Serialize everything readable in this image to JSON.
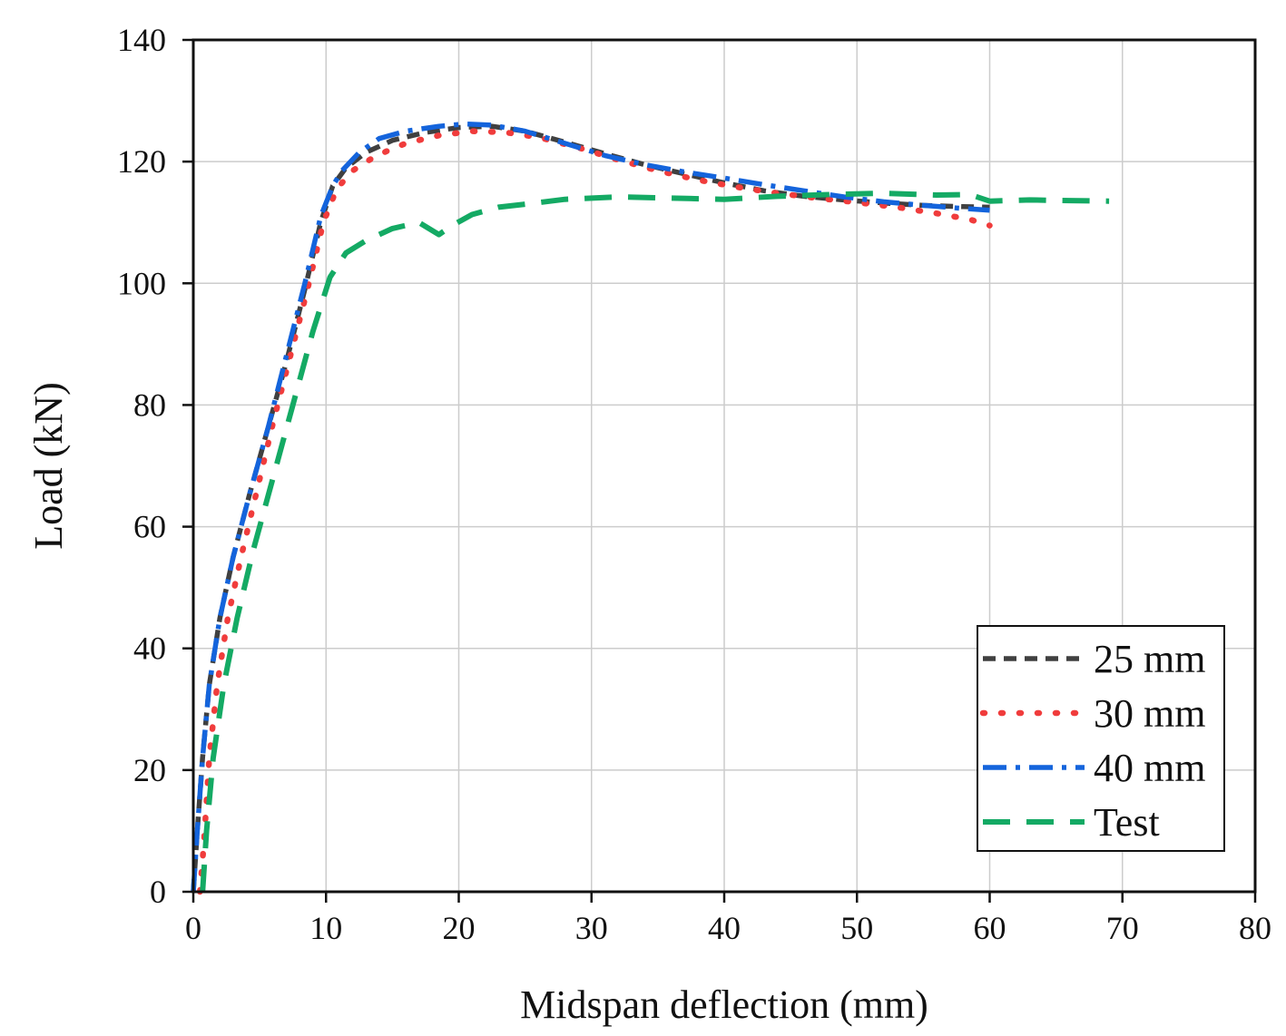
{
  "chart_data": {
    "type": "line",
    "title": "",
    "xlabel": "Midspan deflection (mm)",
    "ylabel": "Load (kN)",
    "xlim": [
      0,
      80
    ],
    "ylim": [
      0,
      140
    ],
    "xticks": [
      0,
      10,
      20,
      30,
      40,
      50,
      60,
      70,
      80
    ],
    "yticks": [
      0,
      20,
      40,
      60,
      80,
      100,
      120,
      140
    ],
    "grid": true,
    "legend_position": "bottom-right",
    "series": [
      {
        "name": "25 mm",
        "color": "#404040",
        "style": "short-dash",
        "x": [
          0,
          0.3,
          0.7,
          1.2,
          2.0,
          3.0,
          4.2,
          5.6,
          7.0,
          8.4,
          9.6,
          10.5,
          11.5,
          13.0,
          15.0,
          17.5,
          20.0,
          22.5,
          25.0,
          28.0,
          31.0,
          34.0,
          37.0,
          40.0,
          43.0,
          46.0,
          49.0,
          52.0,
          55.0,
          58.0,
          60.0
        ],
        "y": [
          0,
          10,
          22,
          34,
          45,
          55,
          65,
          76,
          87,
          99,
          110,
          116,
          119,
          121.5,
          123.5,
          124.8,
          125.6,
          125.8,
          125.0,
          123.2,
          121.3,
          119.5,
          118.0,
          116.5,
          115.2,
          114.3,
          113.7,
          113.2,
          112.8,
          112.6,
          112.5
        ]
      },
      {
        "name": "30 mm",
        "color": "#f03c3c",
        "style": "dotted",
        "x": [
          0.5,
          0.8,
          1.2,
          1.8,
          2.6,
          3.6,
          4.8,
          6.0,
          7.3,
          8.6,
          9.8,
          10.8,
          12.0,
          13.8,
          16.0,
          18.5,
          21.0,
          23.5,
          26.0,
          29.0,
          32.0,
          35.0,
          38.0,
          41.0,
          44.0,
          47.0,
          50.0,
          53.0,
          56.0,
          58.5,
          60.0
        ],
        "y": [
          0,
          8,
          22,
          34,
          45,
          55,
          66,
          77,
          88,
          99,
          110,
          115.5,
          118.5,
          121,
          123,
          124.3,
          125.0,
          124.8,
          124.0,
          122.3,
          120.3,
          118.5,
          117.0,
          115.8,
          114.8,
          114.0,
          113.3,
          112.5,
          111.5,
          110.5,
          109.5
        ]
      },
      {
        "name": "40 mm",
        "color": "#1464dc",
        "style": "dash-dot",
        "x": [
          0,
          0.3,
          0.7,
          1.2,
          2.0,
          3.0,
          4.2,
          5.6,
          7.0,
          8.4,
          9.6,
          10.5,
          11.2,
          12.5,
          14.0,
          16.0,
          18.5,
          20.5,
          22.5,
          25.0,
          28.0,
          31.0,
          34.0,
          37.0,
          40.0,
          43.0,
          46.0,
          49.0,
          52.0,
          55.0,
          58.0,
          60.0
        ],
        "y": [
          0,
          10,
          22,
          34,
          45,
          55,
          65,
          76,
          88,
          100,
          111,
          116,
          118.5,
          121.5,
          123.8,
          125.0,
          125.8,
          126.2,
          126.0,
          125.0,
          123.0,
          121.0,
          119.5,
          118.3,
          117.3,
          116.2,
          115.2,
          114.2,
          113.4,
          112.8,
          112.3,
          112.0
        ]
      },
      {
        "name": "Test",
        "color": "#14aa64",
        "style": "long-dash",
        "x": [
          0.7,
          1.0,
          1.5,
          2.3,
          3.3,
          4.5,
          6.0,
          7.5,
          9.0,
          10.3,
          11.5,
          13.0,
          15.0,
          17.0,
          18.5,
          19.5,
          21.0,
          23.0,
          25.0,
          28.0,
          32.0,
          36.0,
          40.0,
          44.0,
          48.0,
          52.0,
          56.0,
          58.5,
          60.0,
          63.0,
          66.0,
          69.0
        ],
        "y": [
          0,
          10,
          22,
          34,
          45,
          56,
          68,
          80,
          92,
          101,
          105,
          107,
          109,
          110,
          108,
          109.5,
          111.3,
          112.5,
          113.0,
          113.8,
          114.2,
          114.0,
          113.8,
          114.3,
          114.6,
          114.8,
          114.5,
          114.6,
          113.5,
          113.7,
          113.6,
          113.5
        ]
      }
    ]
  }
}
